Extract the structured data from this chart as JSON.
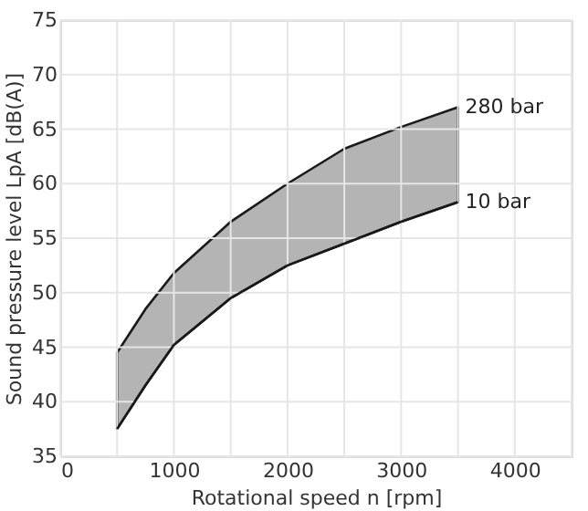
{
  "chart_data": {
    "type": "area",
    "xlabel": "Rotational speed n [rpm]",
    "ylabel": "Sound pressure level LpA [dB(A)]",
    "x": [
      500,
      750,
      1000,
      1500,
      2000,
      2500,
      3000,
      3500
    ],
    "series": [
      {
        "name": "280 bar",
        "color": "#b4b4b4",
        "values": [
          44.5,
          48.5,
          51.8,
          56.5,
          60,
          63.2,
          65.2,
          67
        ]
      },
      {
        "name": "10 bar",
        "type": "line",
        "color": "#1a1a1a",
        "values": [
          37.5,
          41.5,
          45.2,
          49.5,
          52.5,
          54.5,
          56.5,
          58.3
        ]
      }
    ],
    "xlim": [
      0,
      4500
    ],
    "xticks": [
      0,
      {
        "value": 500,
        "label": null
      },
      1000,
      {
        "value": 1500,
        "label": null
      },
      2000,
      {
        "value": 2500,
        "label": null
      },
      3000,
      {
        "value": 3500,
        "label": null
      },
      4000,
      {
        "value": 4500,
        "label": null
      }
    ],
    "ylim": [
      35,
      75
    ],
    "yticks": [
      35,
      40,
      45,
      50,
      55,
      60,
      65,
      70,
      75
    ],
    "grid": true,
    "legend": false,
    "marker": "none",
    "line_style": "solid"
  }
}
